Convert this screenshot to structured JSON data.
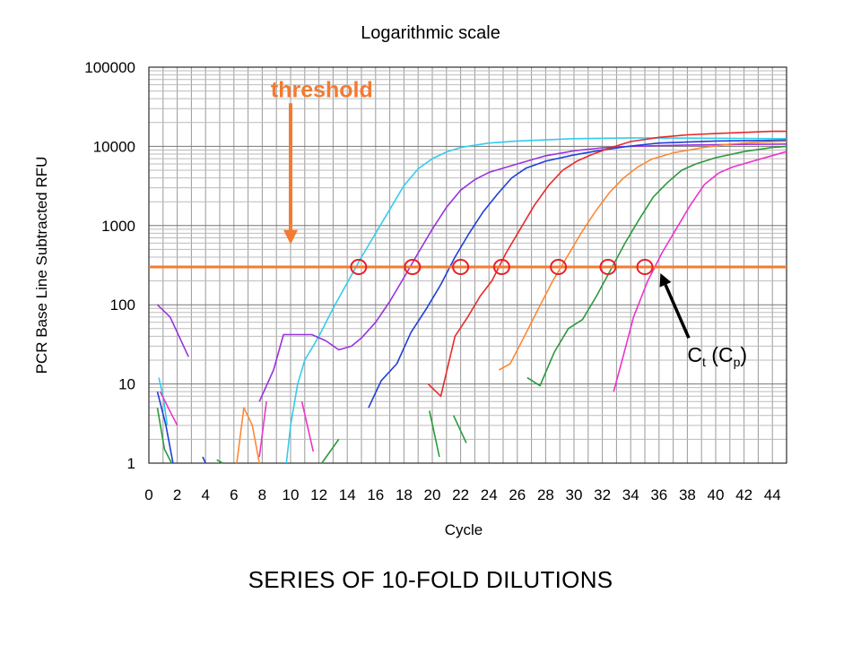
{
  "top_caption": "Logarithmic scale",
  "bottom_caption": "SERIES OF 10-FOLD DILUTIONS",
  "chart_data": {
    "type": "line",
    "xlabel": "Cycle",
    "ylabel": "PCR Base Line Subtracted RFU",
    "yscale": "log",
    "xlim": [
      0,
      45
    ],
    "ylim": [
      1,
      100000
    ],
    "grid": true,
    "x_ticks": [
      0,
      2,
      4,
      6,
      8,
      10,
      12,
      14,
      16,
      18,
      20,
      22,
      24,
      26,
      28,
      30,
      32,
      34,
      36,
      38,
      40,
      42,
      44
    ],
    "y_ticks": [
      1,
      10,
      100,
      1000,
      10000,
      100000
    ],
    "y_tick_labels": [
      "1",
      "10",
      "100",
      "1000",
      "10000",
      "100000"
    ],
    "threshold": {
      "label": "threshold",
      "value": 300,
      "color": "#f47a30",
      "arrow_x": 10,
      "arrow_from": 35000,
      "arrow_to": 580,
      "label_x": 8.6,
      "label_y": 42000
    },
    "ct_annotation": {
      "main": "C",
      "sub_t": "t",
      "paren_open": " (C",
      "sub_p": "p",
      "paren_close": ")",
      "text_x": 38,
      "text_y": 19,
      "arrow_from_x": 38.1,
      "arrow_from_y": 38,
      "arrow_to_x": 36.1,
      "arrow_to_y": 250
    },
    "ct_markers": [
      {
        "x": 14.8,
        "y": 300
      },
      {
        "x": 18.6,
        "y": 300
      },
      {
        "x": 22,
        "y": 300
      },
      {
        "x": 24.9,
        "y": 300
      },
      {
        "x": 28.9,
        "y": 300
      },
      {
        "x": 32.4,
        "y": 300
      },
      {
        "x": 35,
        "y": 300
      }
    ],
    "marker_color": "#e8202a",
    "series": [
      {
        "color": "#33ccee",
        "segments": [
          [
            [
              0.7,
              12
            ],
            [
              1,
              7
            ],
            [
              1.3,
              3
            ]
          ],
          [
            [
              9.7,
              1
            ],
            [
              10,
              3
            ],
            [
              10.5,
              10
            ],
            [
              11,
              20
            ],
            [
              12,
              40
            ],
            [
              13,
              90
            ],
            [
              14,
              190
            ],
            [
              15,
              400
            ],
            [
              16,
              800
            ],
            [
              17,
              1600
            ],
            [
              18,
              3200
            ],
            [
              19,
              5200
            ],
            [
              20,
              7000
            ],
            [
              21,
              8500
            ],
            [
              22,
              9700
            ],
            [
              24,
              11000
            ],
            [
              26,
              11700
            ],
            [
              30,
              12500
            ],
            [
              34,
              12800
            ],
            [
              38,
              12700
            ],
            [
              42,
              12600
            ],
            [
              45,
              12500
            ]
          ]
        ]
      },
      {
        "color": "#9933dd",
        "segments": [
          [
            [
              0.6,
              100
            ],
            [
              1.5,
              70
            ],
            [
              2.8,
              22
            ]
          ],
          [
            [
              7.8,
              6
            ],
            [
              8.8,
              15
            ],
            [
              9.5,
              42
            ],
            [
              11.5,
              42
            ],
            [
              12.5,
              35
            ],
            [
              13.4,
              27
            ],
            [
              14.3,
              30
            ],
            [
              15,
              38
            ],
            [
              16,
              60
            ],
            [
              17,
              110
            ],
            [
              18,
              220
            ],
            [
              19,
              450
            ],
            [
              20,
              900
            ],
            [
              21,
              1700
            ],
            [
              22,
              2800
            ],
            [
              23,
              3800
            ],
            [
              24,
              4700
            ],
            [
              26,
              6000
            ],
            [
              28,
              7600
            ],
            [
              30,
              8800
            ],
            [
              32,
              9600
            ],
            [
              34,
              10000
            ],
            [
              38,
              10400
            ],
            [
              42,
              10600
            ],
            [
              45,
              10700
            ]
          ]
        ]
      },
      {
        "color": "#1f3fd8",
        "segments": [
          [
            [
              0.6,
              8
            ],
            [
              1.2,
              3
            ],
            [
              1.7,
              1
            ]
          ],
          [
            [
              3.8,
              1.2
            ],
            [
              4,
              1
            ]
          ],
          [
            [
              15.5,
              5
            ],
            [
              16.4,
              11
            ],
            [
              17.5,
              18
            ],
            [
              18.5,
              45
            ],
            [
              19.6,
              90
            ],
            [
              20.6,
              180
            ],
            [
              21.6,
              400
            ],
            [
              22.6,
              800
            ],
            [
              23.6,
              1500
            ],
            [
              24.6,
              2500
            ],
            [
              25.6,
              4000
            ],
            [
              26.6,
              5300
            ],
            [
              28,
              6500
            ],
            [
              30,
              7800
            ],
            [
              32,
              9000
            ],
            [
              34,
              10100
            ],
            [
              36,
              11000
            ],
            [
              40,
              11700
            ],
            [
              45,
              12000
            ]
          ]
        ]
      },
      {
        "color": "#e82a2a",
        "segments": [
          [
            [
              19.7,
              10
            ],
            [
              20.6,
              7
            ],
            [
              21.6,
              40
            ],
            [
              22.5,
              70
            ],
            [
              23.4,
              130
            ],
            [
              24.2,
              200
            ],
            [
              25.2,
              450
            ],
            [
              26.2,
              900
            ],
            [
              27.2,
              1800
            ],
            [
              28.2,
              3200
            ],
            [
              29.2,
              5000
            ],
            [
              30.2,
              6500
            ],
            [
              31.2,
              7800
            ],
            [
              32.5,
              9500
            ],
            [
              34,
              11500
            ],
            [
              36,
              13000
            ],
            [
              38,
              14000
            ],
            [
              40,
              14500
            ],
            [
              42,
              15000
            ],
            [
              44,
              15500
            ],
            [
              45,
              15500
            ]
          ]
        ]
      },
      {
        "color": "#ff8833",
        "segments": [
          [
            [
              6.2,
              1
            ],
            [
              6.7,
              5
            ],
            [
              7.3,
              3
            ],
            [
              7.8,
              1
            ]
          ],
          [
            [
              24.7,
              15
            ],
            [
              25.5,
              18
            ],
            [
              26.5,
              40
            ],
            [
              27.5,
              90
            ],
            [
              28.5,
              200
            ],
            [
              29.5,
              400
            ],
            [
              30.5,
              800
            ],
            [
              31.5,
              1500
            ],
            [
              32.5,
              2600
            ],
            [
              33.5,
              4000
            ],
            [
              34.5,
              5500
            ],
            [
              35.5,
              6900
            ],
            [
              37,
              8300
            ],
            [
              39,
              9600
            ],
            [
              41,
              10700
            ],
            [
              43,
              11300
            ],
            [
              45,
              11600
            ]
          ]
        ]
      },
      {
        "color": "#2a9a3a",
        "segments": [
          [
            [
              0.6,
              5
            ],
            [
              1.1,
              1.5
            ],
            [
              1.6,
              1
            ]
          ],
          [
            [
              4.8,
              1.1
            ],
            [
              5.2,
              1
            ]
          ],
          [
            [
              12.2,
              1
            ],
            [
              13.4,
              2
            ]
          ],
          [
            [
              19.8,
              4.6
            ],
            [
              20.5,
              1.2
            ]
          ],
          [
            [
              21.5,
              4
            ],
            [
              22.4,
              1.8
            ]
          ],
          [
            [
              26.7,
              12
            ],
            [
              27.6,
              9.5
            ],
            [
              28.6,
              25
            ],
            [
              29.6,
              50
            ],
            [
              30.6,
              65
            ],
            [
              31.6,
              130
            ],
            [
              32.6,
              280
            ],
            [
              33.6,
              600
            ],
            [
              34.6,
              1200
            ],
            [
              35.6,
              2300
            ],
            [
              36.6,
              3500
            ],
            [
              37.6,
              5000
            ],
            [
              38.6,
              6000
            ],
            [
              40,
              7200
            ],
            [
              42,
              8600
            ],
            [
              44,
              9700
            ],
            [
              45,
              10000
            ]
          ]
        ]
      },
      {
        "color": "#ee33cc",
        "segments": [
          [
            [
              0.8,
              8
            ],
            [
              1.5,
              4.5
            ],
            [
              2,
              3
            ]
          ],
          [
            [
              7.8,
              1.2
            ],
            [
              8.3,
              6
            ]
          ],
          [
            [
              10.8,
              6
            ],
            [
              11.6,
              1.4
            ]
          ],
          [
            [
              32.8,
              8
            ],
            [
              33.4,
              20
            ],
            [
              34.2,
              70
            ],
            [
              35.2,
              200
            ],
            [
              36.2,
              450
            ],
            [
              37.2,
              900
            ],
            [
              38.2,
              1800
            ],
            [
              39.2,
              3300
            ],
            [
              40.2,
              4600
            ],
            [
              41.2,
              5500
            ],
            [
              43,
              6800
            ],
            [
              45,
              8600
            ]
          ]
        ]
      }
    ]
  }
}
